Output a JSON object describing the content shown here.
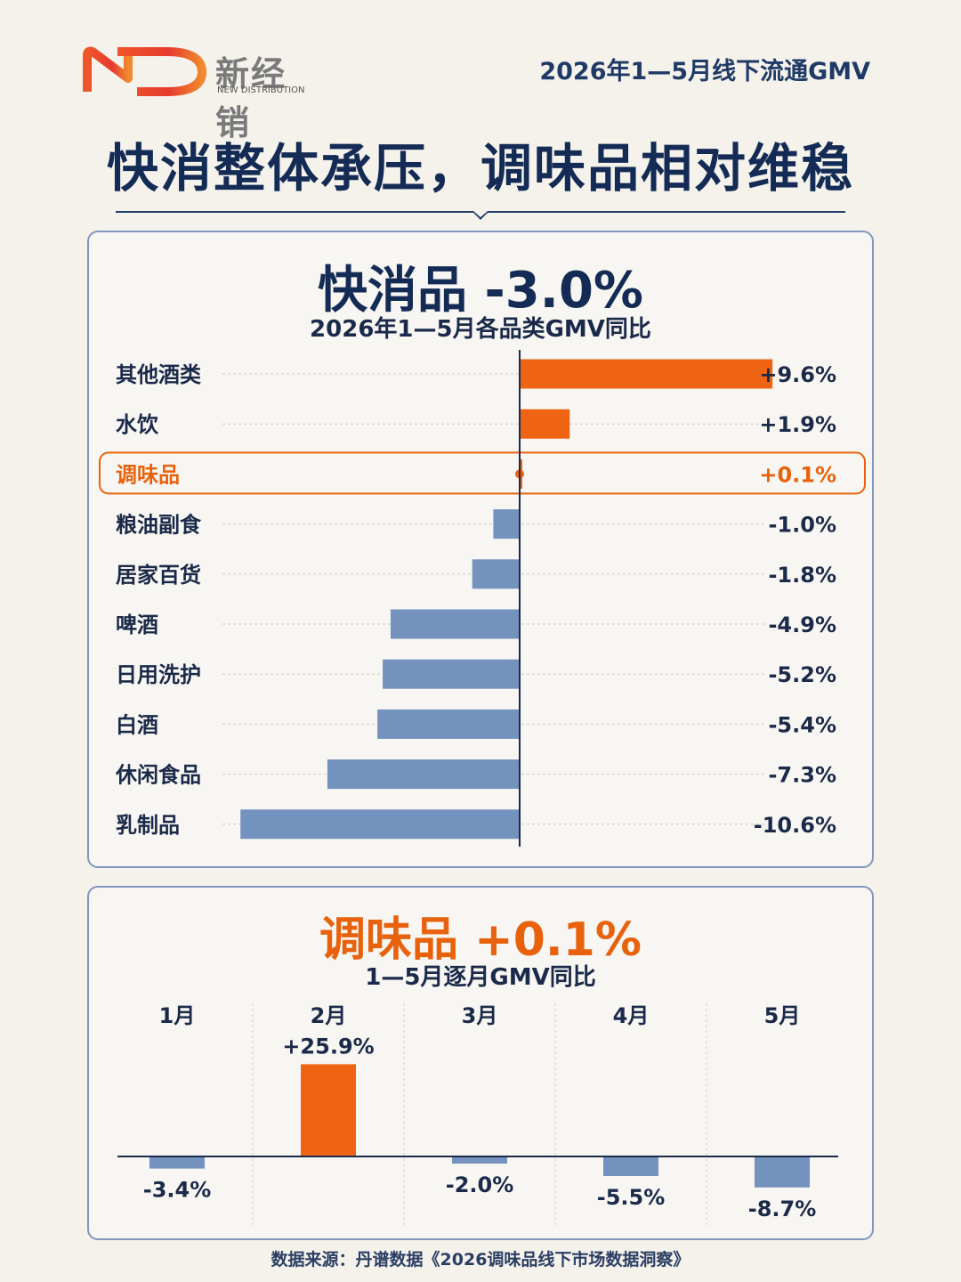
{
  "header": {
    "brand_cn": "新经销",
    "brand_en": "NEW DISTRIBUTION",
    "period": "2026年1—5月线下流通GMV"
  },
  "headline": "快消整体承压，调味品相对维稳",
  "panel1": {
    "title": "快消品 -3.0%",
    "subtitle": "2026年1—5月各品类GMV同比"
  },
  "panel2": {
    "title": "调味品 +0.1%",
    "subtitle": "1—5月逐月GMV同比"
  },
  "source": "数据来源：丹谱数据《2026调味品线下市场数据洞察》",
  "colors": {
    "positive": "#ef6412",
    "negative": "#7392bd",
    "navy": "#142b55",
    "highlight": "#e8620d"
  },
  "chart_data": [
    {
      "type": "bar",
      "orientation": "horizontal",
      "title": "快消品 -3.0%",
      "subtitle": "2026年1—5月各品类GMV同比",
      "unit": "%",
      "categories": [
        "其他酒类",
        "水饮",
        "调味品",
        "粮油副食",
        "居家百货",
        "啤酒",
        "日用洗护",
        "白酒",
        "休闲食品",
        "乳制品"
      ],
      "values": [
        9.6,
        1.9,
        0.1,
        -1.0,
        -1.8,
        -4.9,
        -5.2,
        -5.4,
        -7.3,
        -10.6
      ],
      "labels": [
        "+9.6%",
        "+1.9%",
        "+0.1%",
        "-1.0%",
        "-1.8%",
        "-4.9%",
        "-5.2%",
        "-5.4%",
        "-7.3%",
        "-10.6%"
      ],
      "highlight": "调味品",
      "xlim": [
        -11,
        10
      ]
    },
    {
      "type": "bar",
      "orientation": "vertical",
      "title": "调味品 +0.1%",
      "subtitle": "1—5月逐月GMV同比",
      "unit": "%",
      "categories": [
        "1月",
        "2月",
        "3月",
        "4月",
        "5月"
      ],
      "values": [
        -3.4,
        25.9,
        -2.0,
        -5.5,
        -8.7
      ],
      "labels": [
        "-3.4%",
        "+25.9%",
        "-2.0%",
        "-5.5%",
        "-8.7%"
      ],
      "ylim": [
        -9,
        26
      ]
    }
  ]
}
